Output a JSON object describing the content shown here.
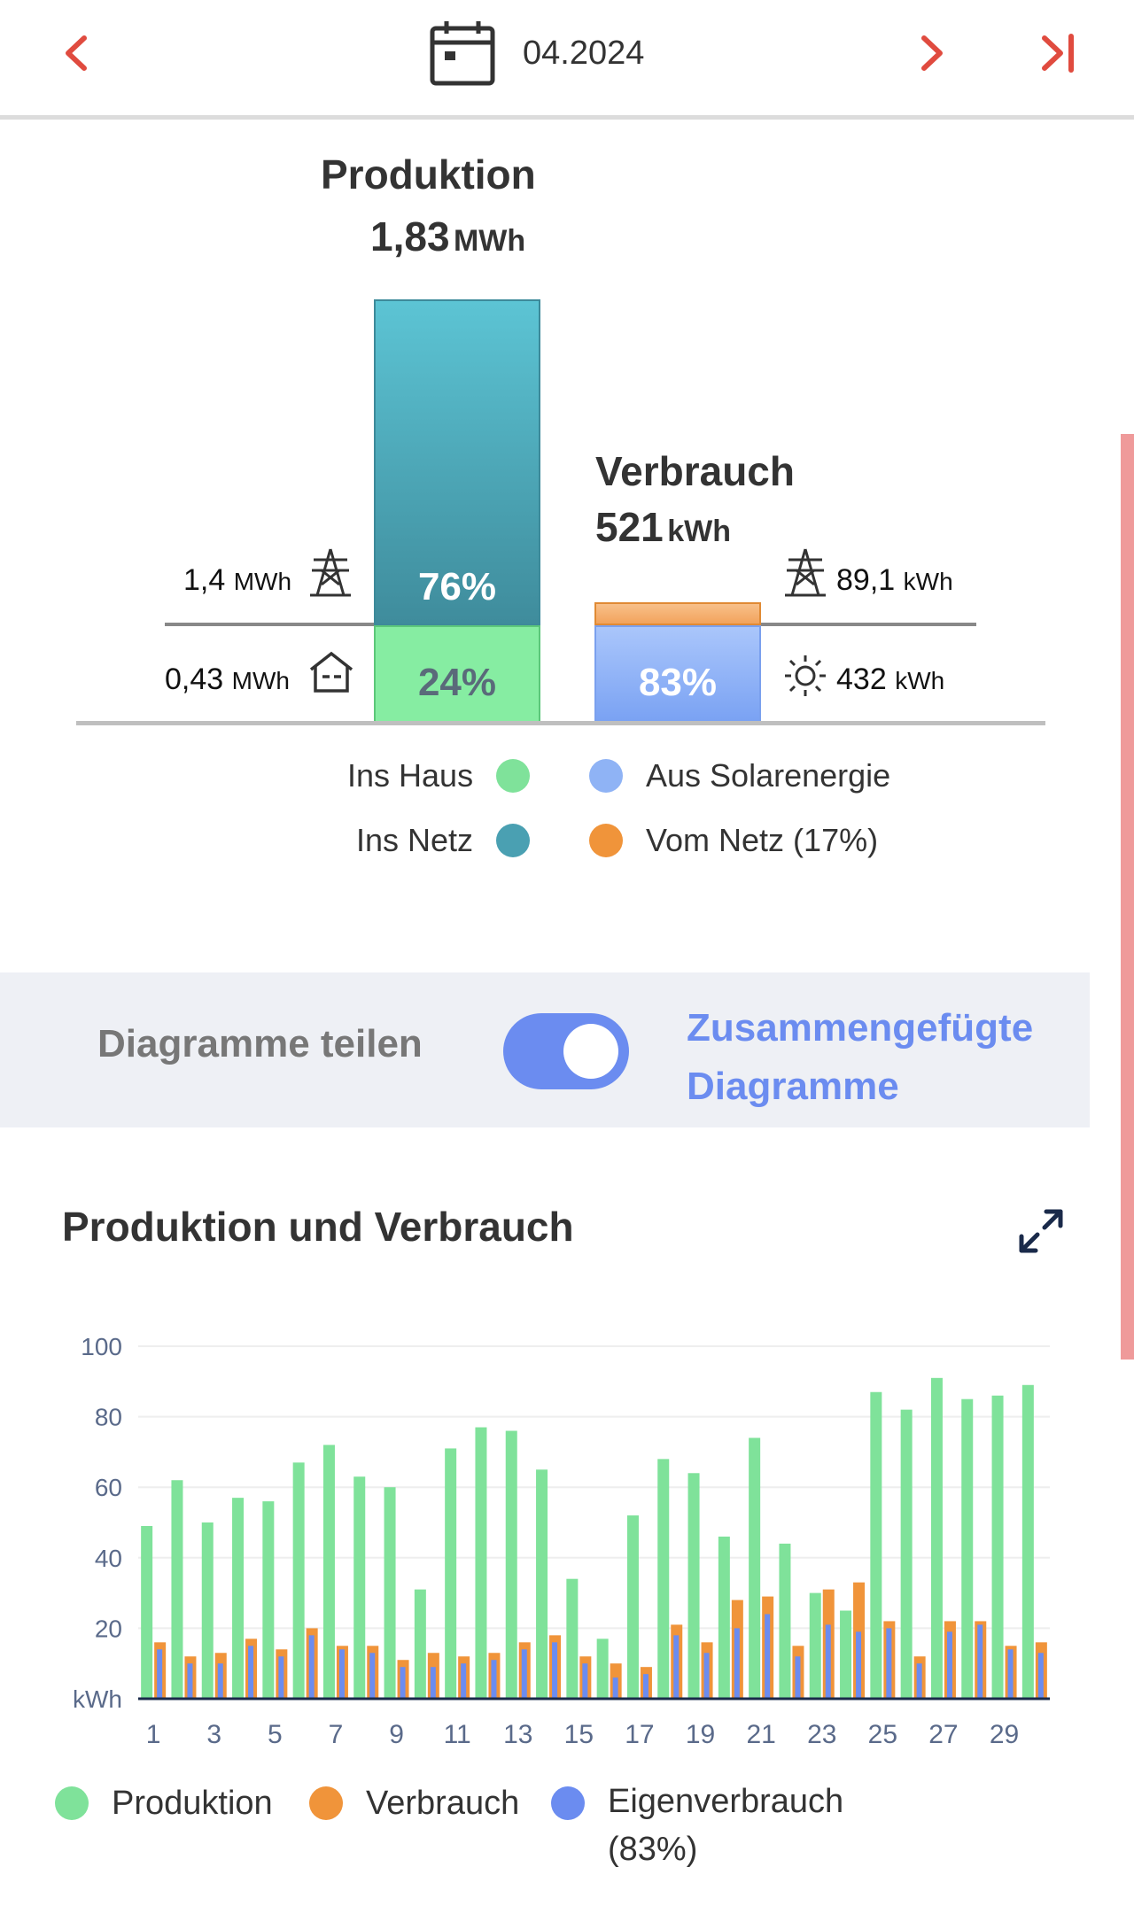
{
  "header": {
    "date": "04.2024"
  },
  "summary": {
    "production": {
      "title": "Produktion",
      "value": "1,83",
      "unit": "MWh"
    },
    "consumption": {
      "title": "Verbrauch",
      "value": "521",
      "unit": "kWh"
    },
    "grid_export": {
      "value": "1,4",
      "unit": "MWh"
    },
    "house": {
      "value": "0,43",
      "unit": "MWh"
    },
    "grid_import": {
      "value": "89,1",
      "unit": "kWh"
    },
    "solar": {
      "value": "432",
      "unit": "kWh"
    },
    "prod_bar": {
      "grid_pct_label": "76%",
      "house_pct_label": "24%",
      "grid_fraction": 0.76,
      "house_fraction": 0.24
    },
    "cons_bar": {
      "solar_pct_label": "83%",
      "grid_fraction": 0.17,
      "solar_fraction": 0.83
    },
    "legend": {
      "ins_haus": "Ins Haus",
      "ins_netz": "Ins Netz",
      "aus_solar": "Aus Solarenergie",
      "vom_netz": "Vom Netz (17%)"
    },
    "colors": {
      "ins_haus": "#7fe29a",
      "ins_netz": "#4aa0b2",
      "aus_solar": "#8fb3f5",
      "vom_netz": "#f0943a"
    }
  },
  "toggle": {
    "left_label": "Diagramme teilen",
    "right_label": "Zusammengefügte Diagramme",
    "on": true
  },
  "chart": {
    "title": "Produktion und Verbrauch",
    "expand_icon": "expand-icon",
    "legend": {
      "production": "Produktion",
      "consumption": "Verbrauch",
      "self": "Eigenverbrauch",
      "self_pct": "(83%)"
    }
  },
  "chart_data": {
    "type": "bar",
    "ylabel": "kWh",
    "ylim": [
      0,
      100
    ],
    "yticks": [
      20,
      40,
      60,
      80,
      100
    ],
    "categories": [
      "1",
      "2",
      "3",
      "4",
      "5",
      "6",
      "7",
      "8",
      "9",
      "10",
      "11",
      "12",
      "13",
      "14",
      "15",
      "16",
      "17",
      "18",
      "19",
      "20",
      "21",
      "22",
      "23",
      "24",
      "25",
      "26",
      "27",
      "28",
      "29",
      "30"
    ],
    "xtick_labels": [
      "1",
      "3",
      "5",
      "7",
      "9",
      "11",
      "13",
      "15",
      "17",
      "19",
      "21",
      "23",
      "25",
      "27",
      "29"
    ],
    "series": [
      {
        "name": "Produktion",
        "color": "#7fe29a",
        "values": [
          49,
          62,
          50,
          57,
          56,
          67,
          72,
          63,
          60,
          31,
          71,
          77,
          76,
          65,
          34,
          17,
          52,
          68,
          64,
          46,
          74,
          44,
          30,
          25,
          87,
          82,
          91,
          85,
          86,
          89
        ]
      },
      {
        "name": "Verbrauch",
        "color": "#f0943a",
        "values": [
          16,
          12,
          13,
          17,
          14,
          20,
          15,
          15,
          11,
          13,
          12,
          13,
          16,
          18,
          12,
          10,
          9,
          21,
          16,
          28,
          29,
          15,
          31,
          33,
          22,
          12,
          22,
          22,
          15,
          16
        ]
      },
      {
        "name": "Eigenverbrauch",
        "color": "#6b8cf0",
        "values": [
          14,
          10,
          10,
          15,
          12,
          18,
          14,
          13,
          9,
          9,
          10,
          11,
          14,
          16,
          10,
          6,
          7,
          18,
          13,
          20,
          24,
          12,
          21,
          19,
          20,
          10,
          19,
          21,
          14,
          13
        ]
      }
    ]
  }
}
